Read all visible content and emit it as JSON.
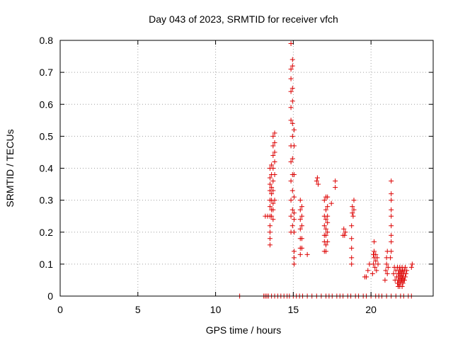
{
  "chart_data": {
    "type": "scatter",
    "title": "Day 043 of 2023, SRMTID for receiver vfch",
    "xlabel": "GPS time / hours",
    "ylabel": "SRMTID / TECUs",
    "xlim": [
      0,
      24
    ],
    "ylim": [
      0,
      0.8
    ],
    "xticks": [
      0,
      5,
      10,
      15,
      20
    ],
    "xtick_labels": [
      "0",
      "5",
      "10",
      "15",
      "20"
    ],
    "yticks": [
      0,
      0.1,
      0.2,
      0.3,
      0.4,
      0.5,
      0.6,
      0.7,
      0.8
    ],
    "ytick_labels": [
      "0",
      "0.1",
      "0.2",
      "0.3",
      "0.4",
      "0.5",
      "0.6",
      "0.7",
      "0.8"
    ],
    "grid": true,
    "marker": "+",
    "color": "#dd0000",
    "series": [
      {
        "name": "SRMTID",
        "points": [
          [
            11.55,
            0
          ],
          [
            13.1,
            0
          ],
          [
            13.2,
            0
          ],
          [
            13.3,
            0
          ],
          [
            13.4,
            0
          ],
          [
            13.6,
            0
          ],
          [
            13.8,
            0
          ],
          [
            14.0,
            0
          ],
          [
            14.2,
            0
          ],
          [
            14.4,
            0
          ],
          [
            14.6,
            0
          ],
          [
            14.75,
            0
          ],
          [
            15.0,
            0
          ],
          [
            15.2,
            0
          ],
          [
            15.4,
            0
          ],
          [
            15.6,
            0
          ],
          [
            15.9,
            0
          ],
          [
            16.2,
            0
          ],
          [
            16.5,
            0
          ],
          [
            16.8,
            0
          ],
          [
            17.1,
            0
          ],
          [
            17.3,
            0
          ],
          [
            17.5,
            0
          ],
          [
            17.8,
            0
          ],
          [
            18.0,
            0
          ],
          [
            18.2,
            0
          ],
          [
            18.5,
            0
          ],
          [
            18.7,
            0
          ],
          [
            19.0,
            0
          ],
          [
            19.2,
            0
          ],
          [
            19.5,
            0
          ],
          [
            19.7,
            0
          ],
          [
            20.0,
            0
          ],
          [
            20.3,
            0
          ],
          [
            20.5,
            0
          ],
          [
            20.7,
            0
          ],
          [
            21.0,
            0
          ],
          [
            21.3,
            0
          ],
          [
            21.6,
            0
          ],
          [
            21.9,
            0
          ],
          [
            22.1,
            0
          ],
          [
            22.4,
            0
          ],
          [
            22.6,
            0
          ],
          [
            13.2,
            0.25
          ],
          [
            13.35,
            0.25
          ],
          [
            13.5,
            0.16
          ],
          [
            13.5,
            0.18
          ],
          [
            13.5,
            0.2
          ],
          [
            13.5,
            0.22
          ],
          [
            13.5,
            0.25
          ],
          [
            13.5,
            0.28
          ],
          [
            13.5,
            0.3
          ],
          [
            13.5,
            0.33
          ],
          [
            13.5,
            0.35
          ],
          [
            13.5,
            0.37
          ],
          [
            13.5,
            0.4
          ],
          [
            13.6,
            0.25
          ],
          [
            13.6,
            0.27
          ],
          [
            13.6,
            0.3
          ],
          [
            13.6,
            0.32
          ],
          [
            13.6,
            0.34
          ],
          [
            13.6,
            0.38
          ],
          [
            13.6,
            0.41
          ],
          [
            13.7,
            0.24
          ],
          [
            13.7,
            0.27
          ],
          [
            13.7,
            0.29
          ],
          [
            13.7,
            0.33
          ],
          [
            13.7,
            0.36
          ],
          [
            13.7,
            0.4
          ],
          [
            13.7,
            0.44
          ],
          [
            13.7,
            0.47
          ],
          [
            13.7,
            0.5
          ],
          [
            13.8,
            0.3
          ],
          [
            13.8,
            0.38
          ],
          [
            13.8,
            0.42
          ],
          [
            13.8,
            0.45
          ],
          [
            13.8,
            0.48
          ],
          [
            13.8,
            0.51
          ],
          [
            14.85,
            0.2
          ],
          [
            14.85,
            0.25
          ],
          [
            14.85,
            0.3
          ],
          [
            14.85,
            0.36
          ],
          [
            14.85,
            0.42
          ],
          [
            14.85,
            0.47
          ],
          [
            14.85,
            0.55
          ],
          [
            14.85,
            0.59
          ],
          [
            14.85,
            0.64
          ],
          [
            14.85,
            0.68
          ],
          [
            14.85,
            0.71
          ],
          [
            14.85,
            0.79
          ],
          [
            14.95,
            0.22
          ],
          [
            14.95,
            0.27
          ],
          [
            14.95,
            0.33
          ],
          [
            14.95,
            0.38
          ],
          [
            14.95,
            0.43
          ],
          [
            14.95,
            0.5
          ],
          [
            14.95,
            0.54
          ],
          [
            14.95,
            0.61
          ],
          [
            14.95,
            0.65
          ],
          [
            14.95,
            0.72
          ],
          [
            14.95,
            0.74
          ],
          [
            15.05,
            0.1
          ],
          [
            15.05,
            0.12
          ],
          [
            15.05,
            0.14
          ],
          [
            15.05,
            0.2
          ],
          [
            15.05,
            0.24
          ],
          [
            15.05,
            0.26
          ],
          [
            15.05,
            0.31
          ],
          [
            15.05,
            0.38
          ],
          [
            15.05,
            0.47
          ],
          [
            15.05,
            0.52
          ],
          [
            15.45,
            0.13
          ],
          [
            15.45,
            0.15
          ],
          [
            15.45,
            0.18
          ],
          [
            15.45,
            0.21
          ],
          [
            15.45,
            0.24
          ],
          [
            15.45,
            0.27
          ],
          [
            15.45,
            0.3
          ],
          [
            15.55,
            0.15
          ],
          [
            15.55,
            0.18
          ],
          [
            15.55,
            0.22
          ],
          [
            15.55,
            0.25
          ],
          [
            15.55,
            0.28
          ],
          [
            15.9,
            0.13
          ],
          [
            16.5,
            0.36
          ],
          [
            16.55,
            0.37
          ],
          [
            16.6,
            0.35
          ],
          [
            17.0,
            0.14
          ],
          [
            17.0,
            0.17
          ],
          [
            17.0,
            0.19
          ],
          [
            17.0,
            0.22
          ],
          [
            17.0,
            0.25
          ],
          [
            17.0,
            0.3
          ],
          [
            17.1,
            0.14
          ],
          [
            17.1,
            0.16
          ],
          [
            17.1,
            0.19
          ],
          [
            17.1,
            0.21
          ],
          [
            17.1,
            0.24
          ],
          [
            17.1,
            0.27
          ],
          [
            17.1,
            0.31
          ],
          [
            17.2,
            0.17
          ],
          [
            17.2,
            0.2
          ],
          [
            17.2,
            0.23
          ],
          [
            17.2,
            0.25
          ],
          [
            17.2,
            0.28
          ],
          [
            17.2,
            0.31
          ],
          [
            17.45,
            0.29
          ],
          [
            17.7,
            0.34
          ],
          [
            17.7,
            0.36
          ],
          [
            18.2,
            0.19
          ],
          [
            18.25,
            0.21
          ],
          [
            18.3,
            0.19
          ],
          [
            18.35,
            0.2
          ],
          [
            18.75,
            0.1
          ],
          [
            18.75,
            0.12
          ],
          [
            18.75,
            0.15
          ],
          [
            18.75,
            0.18
          ],
          [
            18.75,
            0.22
          ],
          [
            18.8,
            0.26
          ],
          [
            18.8,
            0.28
          ],
          [
            18.85,
            0.25
          ],
          [
            18.9,
            0.27
          ],
          [
            18.9,
            0.3
          ],
          [
            19.6,
            0.06
          ],
          [
            19.7,
            0.06
          ],
          [
            19.8,
            0.08
          ],
          [
            19.9,
            0.1
          ],
          [
            20.1,
            0.07
          ],
          [
            20.15,
            0.1
          ],
          [
            20.15,
            0.13
          ],
          [
            20.2,
            0.12
          ],
          [
            20.2,
            0.14
          ],
          [
            20.2,
            0.17
          ],
          [
            20.25,
            0.09
          ],
          [
            20.3,
            0.11
          ],
          [
            20.3,
            0.13
          ],
          [
            20.35,
            0.08
          ],
          [
            20.4,
            0.12
          ],
          [
            20.45,
            0.1
          ],
          [
            20.9,
            0.05
          ],
          [
            20.95,
            0.08
          ],
          [
            21.0,
            0.1
          ],
          [
            21.0,
            0.12
          ],
          [
            21.05,
            0.14
          ],
          [
            21.05,
            0.07
          ],
          [
            21.1,
            0.09
          ],
          [
            21.25,
            0.12
          ],
          [
            21.3,
            0.14
          ],
          [
            21.3,
            0.17
          ],
          [
            21.3,
            0.19
          ],
          [
            21.3,
            0.22
          ],
          [
            21.3,
            0.25
          ],
          [
            21.3,
            0.27
          ],
          [
            21.3,
            0.3
          ],
          [
            21.3,
            0.32
          ],
          [
            21.3,
            0.36
          ],
          [
            21.45,
            0.07
          ],
          [
            21.5,
            0.09
          ],
          [
            21.55,
            0.05
          ],
          [
            21.6,
            0.08
          ],
          [
            21.65,
            0.06
          ],
          [
            21.7,
            0.04
          ],
          [
            21.7,
            0.09
          ],
          [
            21.75,
            0.03
          ],
          [
            21.75,
            0.05
          ],
          [
            21.75,
            0.07
          ],
          [
            21.8,
            0.04
          ],
          [
            21.8,
            0.06
          ],
          [
            21.8,
            0.08
          ],
          [
            21.85,
            0.03
          ],
          [
            21.85,
            0.05
          ],
          [
            21.85,
            0.07
          ],
          [
            21.85,
            0.09
          ],
          [
            21.9,
            0.04
          ],
          [
            21.9,
            0.06
          ],
          [
            21.9,
            0.08
          ],
          [
            21.95,
            0.05
          ],
          [
            21.95,
            0.07
          ],
          [
            22.0,
            0.03
          ],
          [
            22.0,
            0.05
          ],
          [
            22.0,
            0.06
          ],
          [
            22.0,
            0.08
          ],
          [
            22.0,
            0.09
          ],
          [
            22.05,
            0.04
          ],
          [
            22.05,
            0.06
          ],
          [
            22.05,
            0.08
          ],
          [
            22.1,
            0.05
          ],
          [
            22.1,
            0.07
          ],
          [
            22.15,
            0.05
          ],
          [
            22.15,
            0.08
          ],
          [
            22.2,
            0.06
          ],
          [
            22.2,
            0.09
          ],
          [
            22.25,
            0.07
          ],
          [
            22.3,
            0.08
          ],
          [
            22.6,
            0.09
          ],
          [
            22.65,
            0.1
          ]
        ]
      }
    ]
  }
}
